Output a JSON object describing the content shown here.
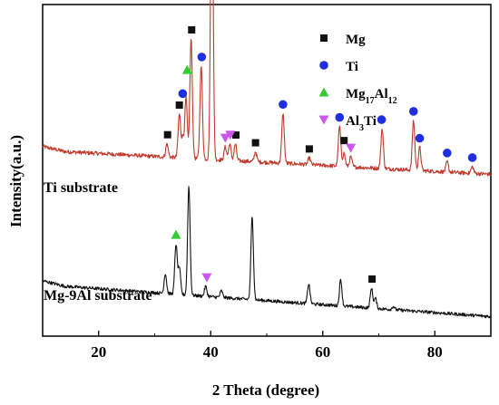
{
  "chart_data": {
    "type": "line",
    "title": "",
    "xlabel": "2 Theta (degree)",
    "ylabel": "Intensity(a.u.)",
    "xlim": [
      10,
      90
    ],
    "x_ticks": [
      20,
      40,
      60,
      80
    ],
    "y_ticks_shown": false,
    "grid": false,
    "legend_position": "top-right",
    "legend": [
      {
        "key": "mg",
        "html": "Mg",
        "marker": "square",
        "color": "#111111"
      },
      {
        "key": "ti",
        "html": "Ti",
        "marker": "circle",
        "color": "#1f2fe0"
      },
      {
        "key": "mg17al12",
        "html": "Mg<tspan baseline-shift='sub' font-size='10'>17</tspan>Al<tspan baseline-shift='sub' font-size='10'>12</tspan>",
        "marker": "triangle-up",
        "color": "#33cc33"
      },
      {
        "key": "al3ti",
        "html": "Al<tspan baseline-shift='sub' font-size='10'>3</tspan>Ti",
        "marker": "triangle-down",
        "color": "#cc55ee"
      }
    ],
    "series": [
      {
        "name": "Ti substrate",
        "color": "#c0392b",
        "baseline": 0.56,
        "noise": 0.012,
        "slope": -0.0009,
        "peaks": [
          [
            32.2,
            0.04
          ],
          [
            34.4,
            0.13
          ],
          [
            35.0,
            0.06
          ],
          [
            35.6,
            0.18
          ],
          [
            36.5,
            0.36
          ],
          [
            38.3,
            0.28
          ],
          [
            40.2,
            1.0
          ],
          [
            42.6,
            0.04
          ],
          [
            43.4,
            0.05
          ],
          [
            44.4,
            0.05
          ],
          [
            48.0,
            0.03
          ],
          [
            52.9,
            0.15
          ],
          [
            57.6,
            0.02
          ],
          [
            63.0,
            0.12
          ],
          [
            63.8,
            0.04
          ],
          [
            65.0,
            0.03
          ],
          [
            70.6,
            0.12
          ],
          [
            76.2,
            0.15
          ],
          [
            77.3,
            0.07
          ],
          [
            82.2,
            0.03
          ],
          [
            86.7,
            0.02
          ]
        ],
        "markers": [
          {
            "phase": "mg",
            "x": [
              32.3,
              34.4,
              36.6,
              44.5,
              48.0,
              57.6,
              63.8
            ]
          },
          {
            "phase": "ti",
            "x": [
              35.0,
              38.4,
              40.2,
              52.9,
              63.0,
              70.5,
              76.2,
              77.3,
              82.2,
              86.7
            ]
          },
          {
            "phase": "mg17al12",
            "x": [
              35.8
            ]
          },
          {
            "phase": "al3ti",
            "x": [
              42.6,
              43.5,
              65.0
            ]
          }
        ]
      },
      {
        "name": "Mg-9Al substrate",
        "color": "#111111",
        "baseline": 0.155,
        "noise": 0.01,
        "slope": -0.0012,
        "peaks": [
          [
            31.9,
            0.06
          ],
          [
            33.8,
            0.15
          ],
          [
            34.4,
            0.08
          ],
          [
            36.1,
            0.33
          ],
          [
            39.1,
            0.03
          ],
          [
            41.9,
            0.02
          ],
          [
            47.4,
            0.25
          ],
          [
            57.5,
            0.06
          ],
          [
            63.2,
            0.08
          ],
          [
            68.7,
            0.06
          ],
          [
            69.4,
            0.03
          ],
          [
            72.6,
            0.01
          ]
        ],
        "markers": [
          {
            "phase": "mg17al12",
            "x": [
              33.8
            ]
          },
          {
            "phase": "al3ti",
            "x": [
              39.3
            ]
          },
          {
            "phase": "mg",
            "x": [
              68.8
            ]
          }
        ]
      }
    ]
  },
  "labels": {
    "ti_substrate": "Ti substrate",
    "mg9al_substrate": "Mg-9Al substrate"
  }
}
